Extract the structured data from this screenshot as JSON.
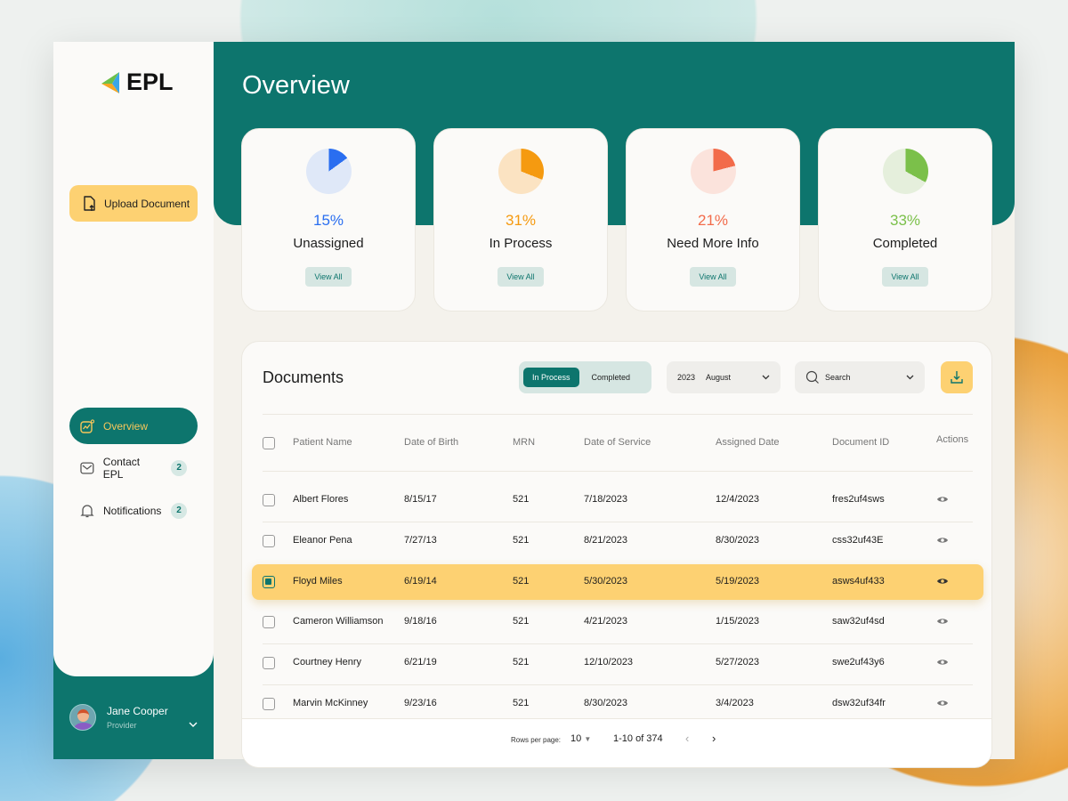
{
  "brand": {
    "logo_text": "EPL"
  },
  "sidebar": {
    "upload_label": "Upload Document",
    "items": [
      {
        "label": "Overview",
        "icon": "chart-icon",
        "active": true
      },
      {
        "label": "Contact EPL",
        "icon": "mail-icon",
        "badge": "2"
      },
      {
        "label": "Notifications",
        "icon": "bell-icon",
        "badge": "2"
      }
    ],
    "user": {
      "name": "Jane Cooper",
      "role": "Provider"
    }
  },
  "header": {
    "title": "Overview"
  },
  "stats": [
    {
      "percent": "15%",
      "value": 15,
      "label": "Unassigned",
      "color": "#2a6ef0",
      "light": "#dfe8f8",
      "button": "View All"
    },
    {
      "percent": "31%",
      "value": 31,
      "label": "In Process",
      "color": "#f59a10",
      "light": "#fbe3c2",
      "button": "View All"
    },
    {
      "percent": "21%",
      "value": 21,
      "label": "Need More Info",
      "color": "#f26b4a",
      "light": "#fbe3dc",
      "button": "View All"
    },
    {
      "percent": "33%",
      "value": 33,
      "label": "Completed",
      "color": "#7bc04a",
      "light": "#e5efdc",
      "button": "View All"
    }
  ],
  "documents": {
    "title": "Documents",
    "tabs": [
      "In Process",
      "Completed"
    ],
    "active_tab": "In Process",
    "year": "2023",
    "month": "August",
    "search_placeholder": "Search",
    "columns": [
      "Patient Name",
      "Date of Birth",
      "MRN",
      "Date of Service",
      "Assigned Date",
      "Document ID",
      "Actions"
    ],
    "rows": [
      [
        "Albert Flores",
        "8/15/17",
        "521",
        "7/18/2023",
        "12/4/2023",
        "fres2uf4sws"
      ],
      [
        "Eleanor Pena",
        "7/27/13",
        "521",
        "8/21/2023",
        "8/30/2023",
        "css32uf43E"
      ],
      [
        "Floyd Miles",
        "6/19/14",
        "521",
        "5/30/2023",
        "5/19/2023",
        "asws4uf433"
      ],
      [
        "Cameron Williamson",
        "9/18/16",
        "521",
        "4/21/2023",
        "1/15/2023",
        "saw32uf4sd"
      ],
      [
        "Courtney Henry",
        "6/21/19",
        "521",
        "12/10/2023",
        "5/27/2023",
        "swe2uf43y6"
      ],
      [
        "Marvin McKinney",
        "9/23/16",
        "521",
        "8/30/2023",
        "3/4/2023",
        "dsw32uf34fr"
      ]
    ],
    "selected_row": 2,
    "pagination": {
      "rows_per_page_label": "Rows per page:",
      "rows_per_page": "10",
      "range": "1-10 of 374"
    }
  },
  "colors": {
    "primary": "#0d756d",
    "accent": "#fdd172"
  }
}
